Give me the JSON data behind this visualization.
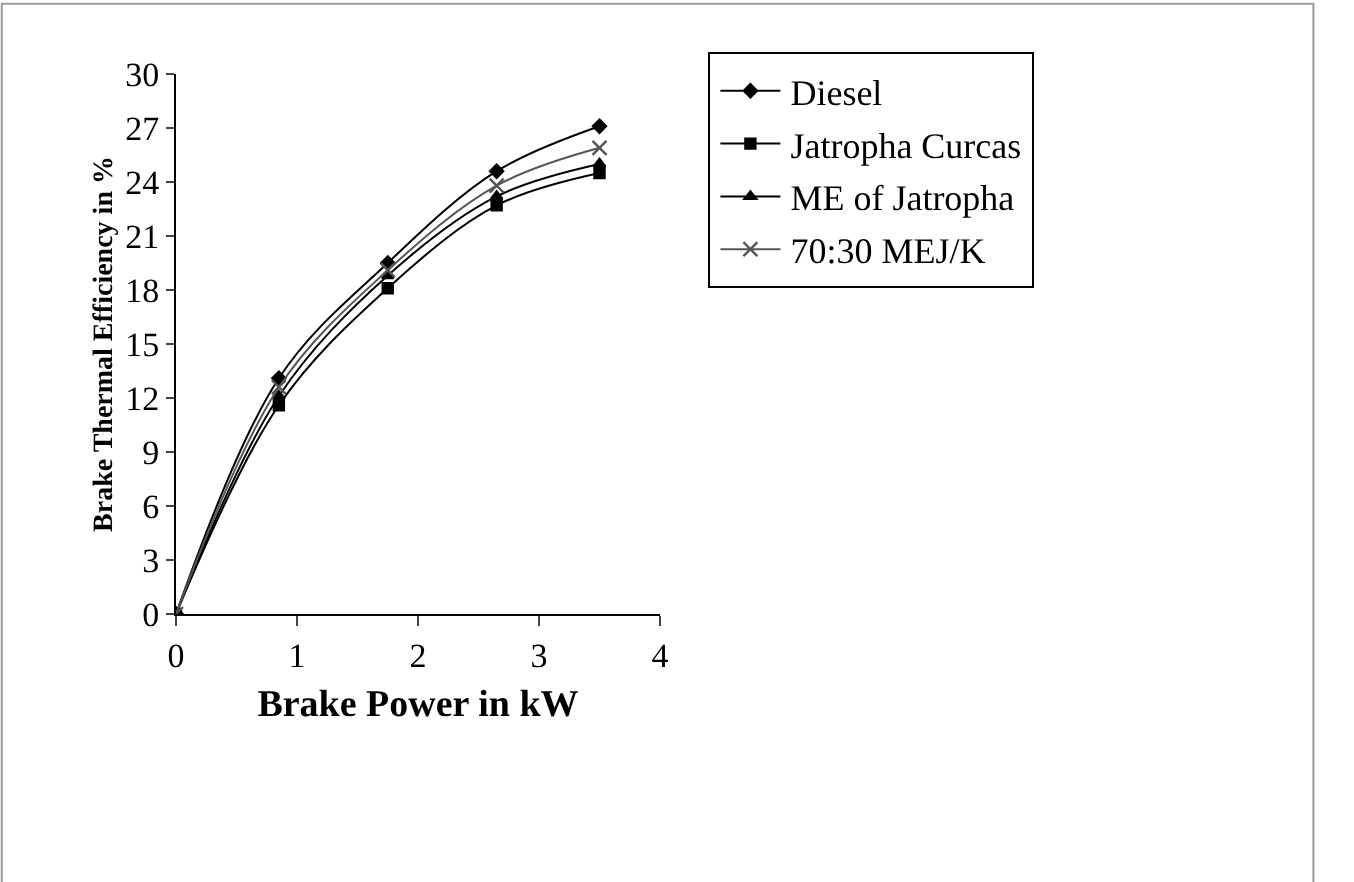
{
  "chart_data": {
    "type": "line",
    "xlabel": "Brake Power in kW",
    "ylabel": "Brake Thermal Efficiency in %",
    "x": [
      0,
      0.85,
      1.75,
      2.65,
      3.5
    ],
    "xlim": [
      0,
      4
    ],
    "xticks": [
      0,
      1,
      2,
      3,
      4
    ],
    "ylim": [
      0,
      30
    ],
    "yticks": [
      0,
      3,
      6,
      9,
      12,
      15,
      18,
      21,
      24,
      27,
      30
    ],
    "legend": "top right",
    "grid": false,
    "series": [
      {
        "name": "Diesel",
        "color": "#000000",
        "marker": "diamond",
        "values": [
          0,
          13.1,
          19.5,
          24.6,
          27.1
        ]
      },
      {
        "name": "Jatropha Curcas",
        "color": "#000000",
        "marker": "square",
        "values": [
          0,
          11.6,
          18.1,
          22.7,
          24.5
        ]
      },
      {
        "name": "ME of Jatropha",
        "color": "#000000",
        "marker": "triangle",
        "values": [
          0,
          12.1,
          18.8,
          23.2,
          25.0
        ]
      },
      {
        "name": "70:30 MEJ/K",
        "color": "#555555",
        "marker": "cross",
        "values": [
          0,
          12.6,
          19.1,
          23.8,
          25.9
        ]
      }
    ]
  }
}
